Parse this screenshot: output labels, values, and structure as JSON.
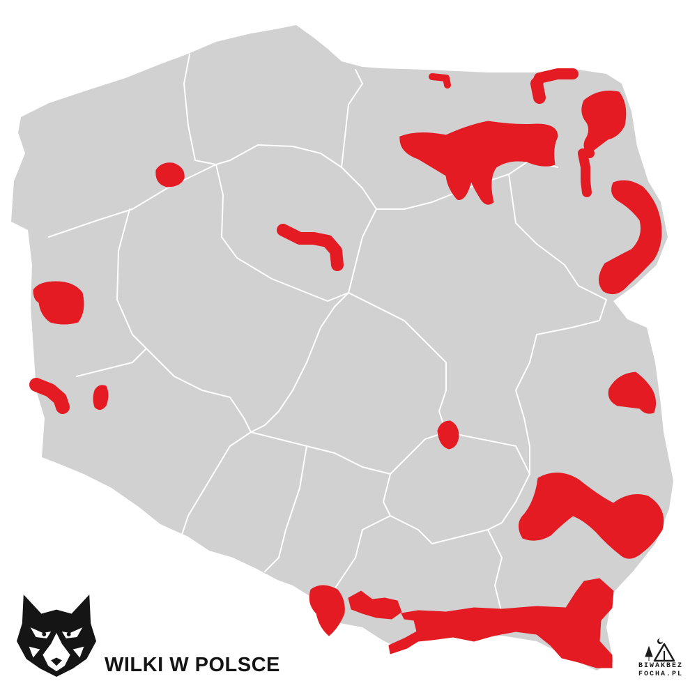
{
  "title": "WILKI W POLSCE",
  "brand": {
    "line1": "BIWAKBEZ",
    "line2": "FOCHA.PL"
  },
  "icons": {
    "logo": "wolf-head-icon",
    "brand": "tent-tree-moon-icon"
  },
  "colors": {
    "country": "#d1d1d1",
    "borders": "#ffffff",
    "wolf_range": "#e41b23",
    "text": "#141414"
  }
}
